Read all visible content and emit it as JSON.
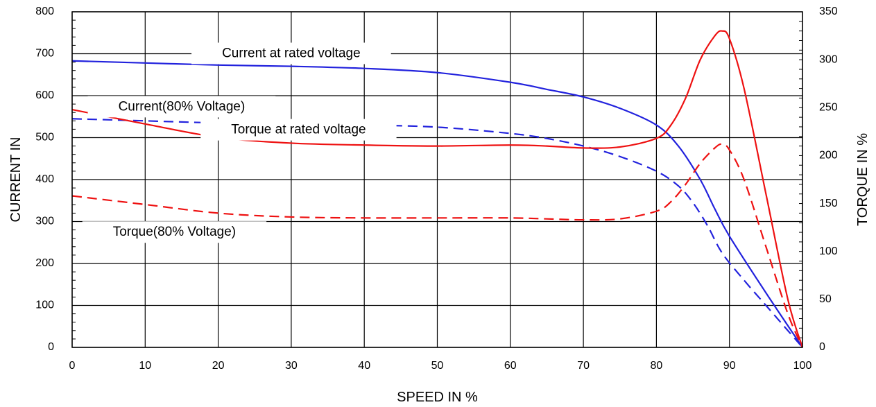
{
  "chart_data": {
    "type": "line",
    "xlabel": "SPEED IN %",
    "ylabel_left": "CURRENT IN",
    "ylabel_right": "TORQUE IN %",
    "xlim": [
      0,
      100
    ],
    "ylim_left": [
      0,
      800
    ],
    "ylim_right": [
      0,
      350
    ],
    "x_ticks": [
      "0",
      "10",
      "20",
      "30",
      "40",
      "50",
      "60",
      "70",
      "80",
      "90",
      "100"
    ],
    "y_left_ticks": [
      "0",
      "100",
      "200",
      "300",
      "400",
      "500",
      "600",
      "700",
      "800"
    ],
    "y_right_ticks": [
      "0",
      "50",
      "100",
      "150",
      "200",
      "250",
      "300",
      "350"
    ],
    "grid": true,
    "colors": {
      "current": "#2222dd",
      "torque": "#ee1111"
    },
    "series": [
      {
        "name": "Current at rated voltage",
        "axis": "left",
        "style": "solid",
        "color": "#2222dd",
        "x": [
          0,
          10,
          20,
          30,
          40,
          50,
          60,
          65,
          70,
          75,
          80,
          83,
          86,
          88,
          90,
          95,
          100
        ],
        "y": [
          683,
          678,
          673,
          670,
          665,
          655,
          632,
          615,
          597,
          570,
          530,
          480,
          400,
          330,
          265,
          130,
          0
        ]
      },
      {
        "name": "Current(80% Voltage)",
        "axis": "left",
        "style": "dashed",
        "color": "#2222dd",
        "x": [
          0,
          10,
          20,
          30,
          40,
          50,
          60,
          65,
          70,
          75,
          80,
          83,
          85,
          87,
          89,
          92,
          95,
          100
        ],
        "y": [
          545,
          540,
          535,
          532,
          530,
          525,
          510,
          498,
          480,
          455,
          420,
          385,
          345,
          290,
          225,
          160,
          100,
          0
        ]
      },
      {
        "name": "Torque at rated voltage",
        "axis": "right",
        "style": "solid",
        "color": "#ee1111",
        "x": [
          0,
          10,
          20,
          30,
          40,
          50,
          60,
          65,
          70,
          75,
          80,
          82,
          84,
          86,
          88,
          89,
          90,
          92,
          95,
          98,
          100
        ],
        "y": [
          248,
          233,
          219,
          213,
          211,
          210,
          211,
          210,
          208,
          209,
          218,
          232,
          260,
          300,
          325,
          330,
          322,
          270,
          160,
          50,
          0
        ]
      },
      {
        "name": "Torque(80% Voltage)",
        "axis": "right",
        "style": "dashed",
        "color": "#ee1111",
        "x": [
          0,
          10,
          20,
          30,
          40,
          50,
          60,
          65,
          70,
          75,
          80,
          82,
          84,
          86,
          88,
          89,
          90,
          92,
          95,
          98,
          100
        ],
        "y": [
          158,
          149,
          140,
          136,
          135,
          135,
          135,
          134,
          133,
          134,
          142,
          152,
          170,
          192,
          208,
          212,
          206,
          175,
          105,
          35,
          0
        ]
      }
    ],
    "annotations": [
      {
        "text": "Current at rated voltage",
        "x": 30,
        "y_left": 700
      },
      {
        "text": "Current(80% Voltage)",
        "x": 15,
        "y_left": 573
      },
      {
        "text": "Torque at rated voltage",
        "x": 31,
        "y_left": 518
      },
      {
        "text": "Torque(80% Voltage)",
        "x": 14,
        "y_left": 274
      }
    ]
  }
}
